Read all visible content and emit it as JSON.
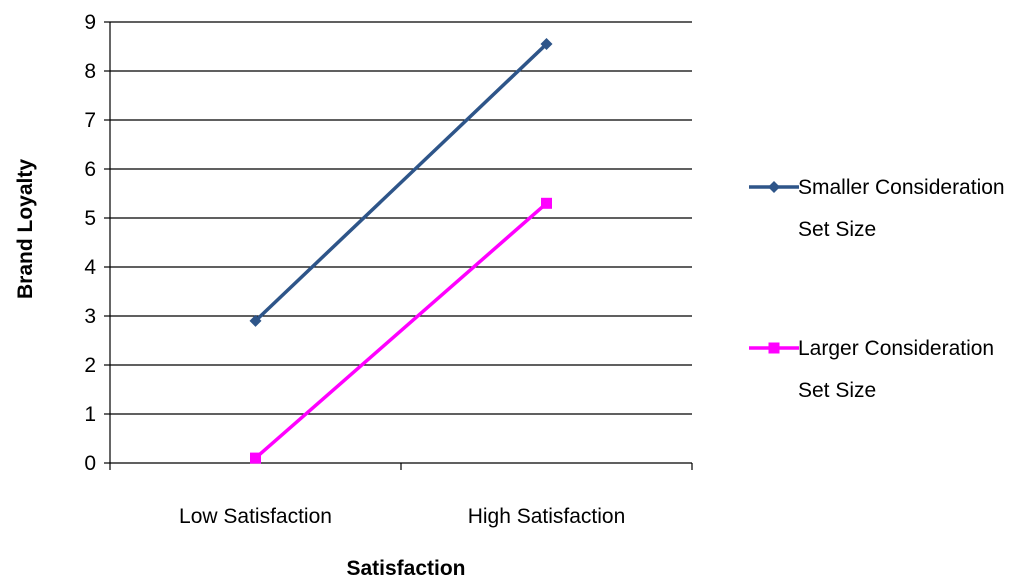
{
  "chart_data": {
    "type": "line",
    "categories": [
      "Low Satisfaction",
      "High Satisfaction"
    ],
    "series": [
      {
        "name": "Smaller Consideration Set Size",
        "values": [
          2.9,
          8.55
        ],
        "color": "#2e5589",
        "marker": "diamond"
      },
      {
        "name": "Larger Consideration Set Size",
        "values": [
          0.1,
          5.3
        ],
        "color": "#ff00ff",
        "marker": "square"
      }
    ],
    "title": "",
    "xlabel": "Satisfaction",
    "ylabel": "Brand Loyalty",
    "ylim": [
      0,
      9
    ],
    "yticks": [
      "0",
      "1",
      "2",
      "3",
      "4",
      "5",
      "6",
      "7",
      "8",
      "9"
    ],
    "grid": true,
    "legend_position": "right"
  }
}
